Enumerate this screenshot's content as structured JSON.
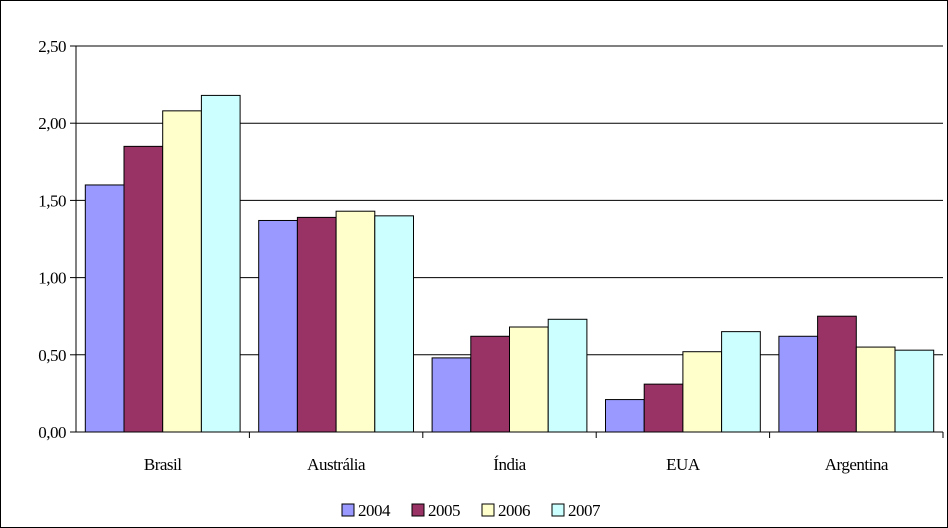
{
  "chart_data": {
    "type": "bar",
    "categories": [
      "Brasil",
      "Austrália",
      "Índia",
      "EUA",
      "Argentina"
    ],
    "series": [
      {
        "name": "2004",
        "color": "#9999ff",
        "values": [
          1.6,
          1.37,
          0.48,
          0.21,
          0.62
        ]
      },
      {
        "name": "2005",
        "color": "#993366",
        "values": [
          1.85,
          1.39,
          0.62,
          0.31,
          0.75
        ]
      },
      {
        "name": "2006",
        "color": "#ffffcc",
        "values": [
          2.08,
          1.43,
          0.68,
          0.52,
          0.55
        ]
      },
      {
        "name": "2007",
        "color": "#ccffff",
        "values": [
          2.18,
          1.4,
          0.73,
          0.65,
          0.53
        ]
      }
    ],
    "yticks": [
      "0,00",
      "0,50",
      "1,00",
      "1,50",
      "2,00",
      "2,50"
    ],
    "ylim": [
      0,
      2.5
    ],
    "grid": true,
    "legend": "bottom-center"
  }
}
